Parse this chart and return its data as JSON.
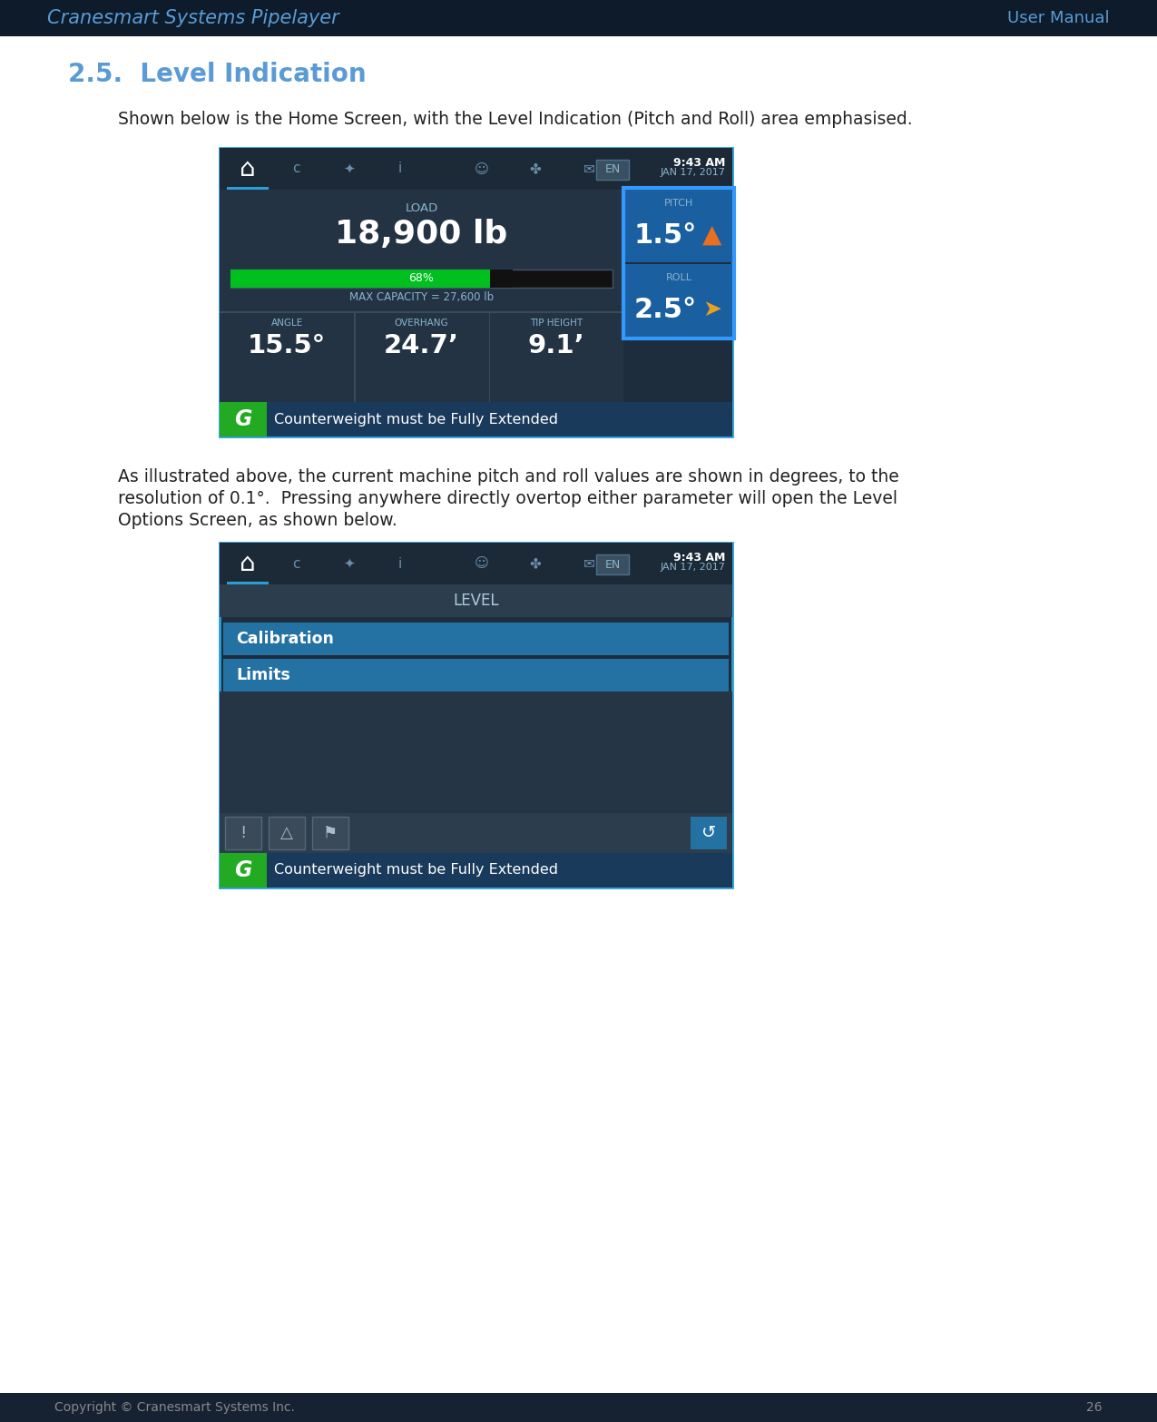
{
  "header_bg": "#0d1b2a",
  "header_text_left": "Cranesmart Systems Pipelayer",
  "header_text_right": "User Manual",
  "header_text_color": "#5b9bd5",
  "footer_bg": "#162232",
  "footer_text": "Copyright © Cranesmart Systems Inc.",
  "footer_page": "26",
  "page_bg": "#ffffff",
  "section_title": "2.5.  Level Indication",
  "section_title_color": "#5b9bd5",
  "para1": "Shown below is the Home Screen, with the Level Indication (Pitch and Roll) area emphasised.",
  "para2_l1": "As illustrated above, the current machine pitch and roll values are shown in degrees, to the",
  "para2_l2": "resolution of 0.1°.  Pressing anywhere directly overtop either parameter will open the Level",
  "para2_l3": "Options Screen, as shown below.",
  "screen_topbar_bg": "#1c2a38",
  "screen_body_bg": "#1e2d3d",
  "screen_panel_bg": "#243344",
  "screen_time": "9:43 AM",
  "screen_date": "JAN 17, 2017",
  "load_label": "LOAD",
  "load_value": "18,900 lb",
  "bar_pct": "68%",
  "bar_color": "#00c020",
  "bar_empty_color": "#111111",
  "max_cap": "MAX CAPACITY = 27,600 lb",
  "pitch_label": "PITCH",
  "pitch_value": "1.5°",
  "pitch_panel_bg": "#1a5fa0",
  "roll_label": "ROLL",
  "roll_value": "2.5°",
  "roll_panel_bg": "#1a5fa0",
  "angle_label": "ANGLE",
  "angle_value": "15.5°",
  "overhang_label": "OVERHANG",
  "overhang_value": "24.7’",
  "tipheight_label": "TIP HEIGHT",
  "tipheight_value": "9.1’",
  "bottom_bar_bg": "#1a3a5c",
  "bottom_bar_text": "Counterweight must be Fully Extended",
  "bottom_icon_bg": "#22aa22",
  "highlight_color": "#2a9fd6",
  "level_title": "LEVEL",
  "cal_label": "Calibration",
  "cal_bg": "#2471a3",
  "limits_label": "Limits",
  "limits_bg": "#2471a3",
  "back_btn_bg": "#2471a3",
  "icon_btn_bg": "#3a4a58",
  "label_color": "#8ab4cc",
  "text_white": "#ffffff",
  "text_gray": "#aaaaaa",
  "divider_color": "#3a4a58",
  "screen1_border": "#2a9fd6",
  "screen2_border": "#2a9fd6"
}
